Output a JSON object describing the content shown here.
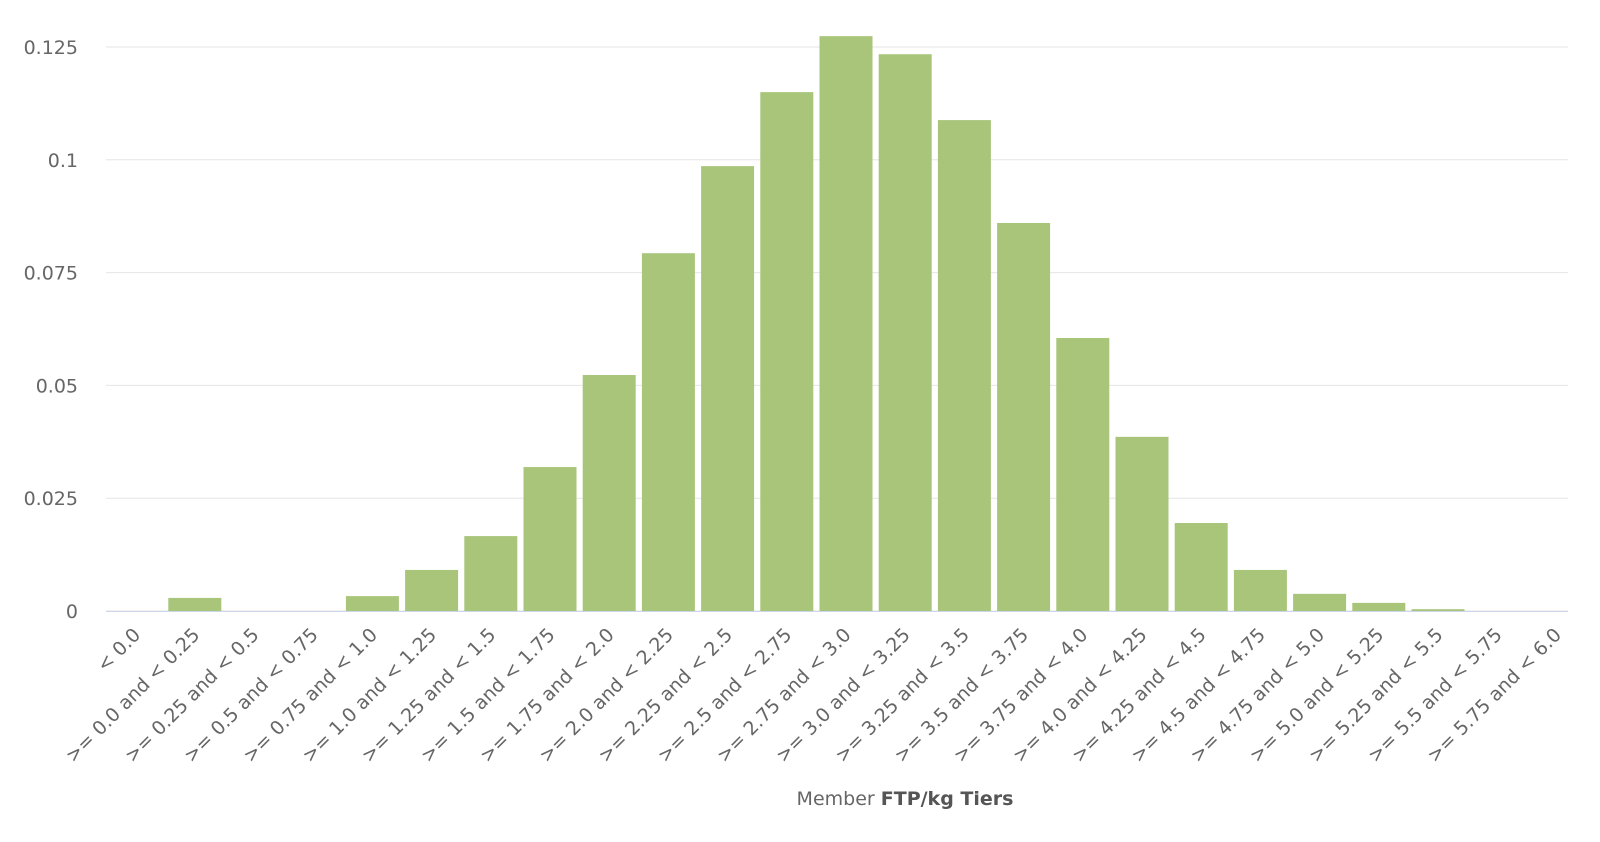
{
  "chart_data": {
    "type": "bar",
    "categories": [
      "< 0.0",
      ">= 0.0 and < 0.25",
      ">= 0.25 and < 0.5",
      ">= 0.5 and < 0.75",
      ">= 0.75 and < 1.0",
      ">= 1.0 and < 1.25",
      ">= 1.25 and < 1.5",
      ">= 1.5 and < 1.75",
      ">= 1.75 and < 2.0",
      ">= 2.0 and < 2.25",
      ">= 2.25 and < 2.5",
      ">= 2.5 and < 2.75",
      ">= 2.75 and < 3.0",
      ">= 3.0 and < 3.25",
      ">= 3.25 and < 3.5",
      ">= 3.5 and < 3.75",
      ">= 3.75 and < 4.0",
      ">= 4.0 and < 4.25",
      ">= 4.25 and < 4.5",
      ">= 4.5 and < 4.75",
      ">= 4.75 and < 5.0",
      ">= 5.0 and < 5.25",
      ">= 5.25 and < 5.5",
      ">= 5.5 and < 5.75",
      ">= 5.75 and < 6.0"
    ],
    "values": [
      0,
      0.0029,
      0,
      0,
      0.0033,
      0.0091,
      0.0166,
      0.0319,
      0.0523,
      0.0793,
      0.0986,
      0.115,
      0.1274,
      0.1234,
      0.1088,
      0.086,
      0.0605,
      0.0386,
      0.0195,
      0.0091,
      0.0038,
      0.0018,
      0.0004,
      0,
      0
    ],
    "color": "#a8c57a",
    "xlabel": {
      "prefix": "Member",
      "bold": "FTP/kg Tiers"
    },
    "ylim": [
      0,
      0.125
    ],
    "yticks": [
      0,
      0.025,
      0.05,
      0.075,
      0.1,
      0.125
    ],
    "grid": true
  }
}
